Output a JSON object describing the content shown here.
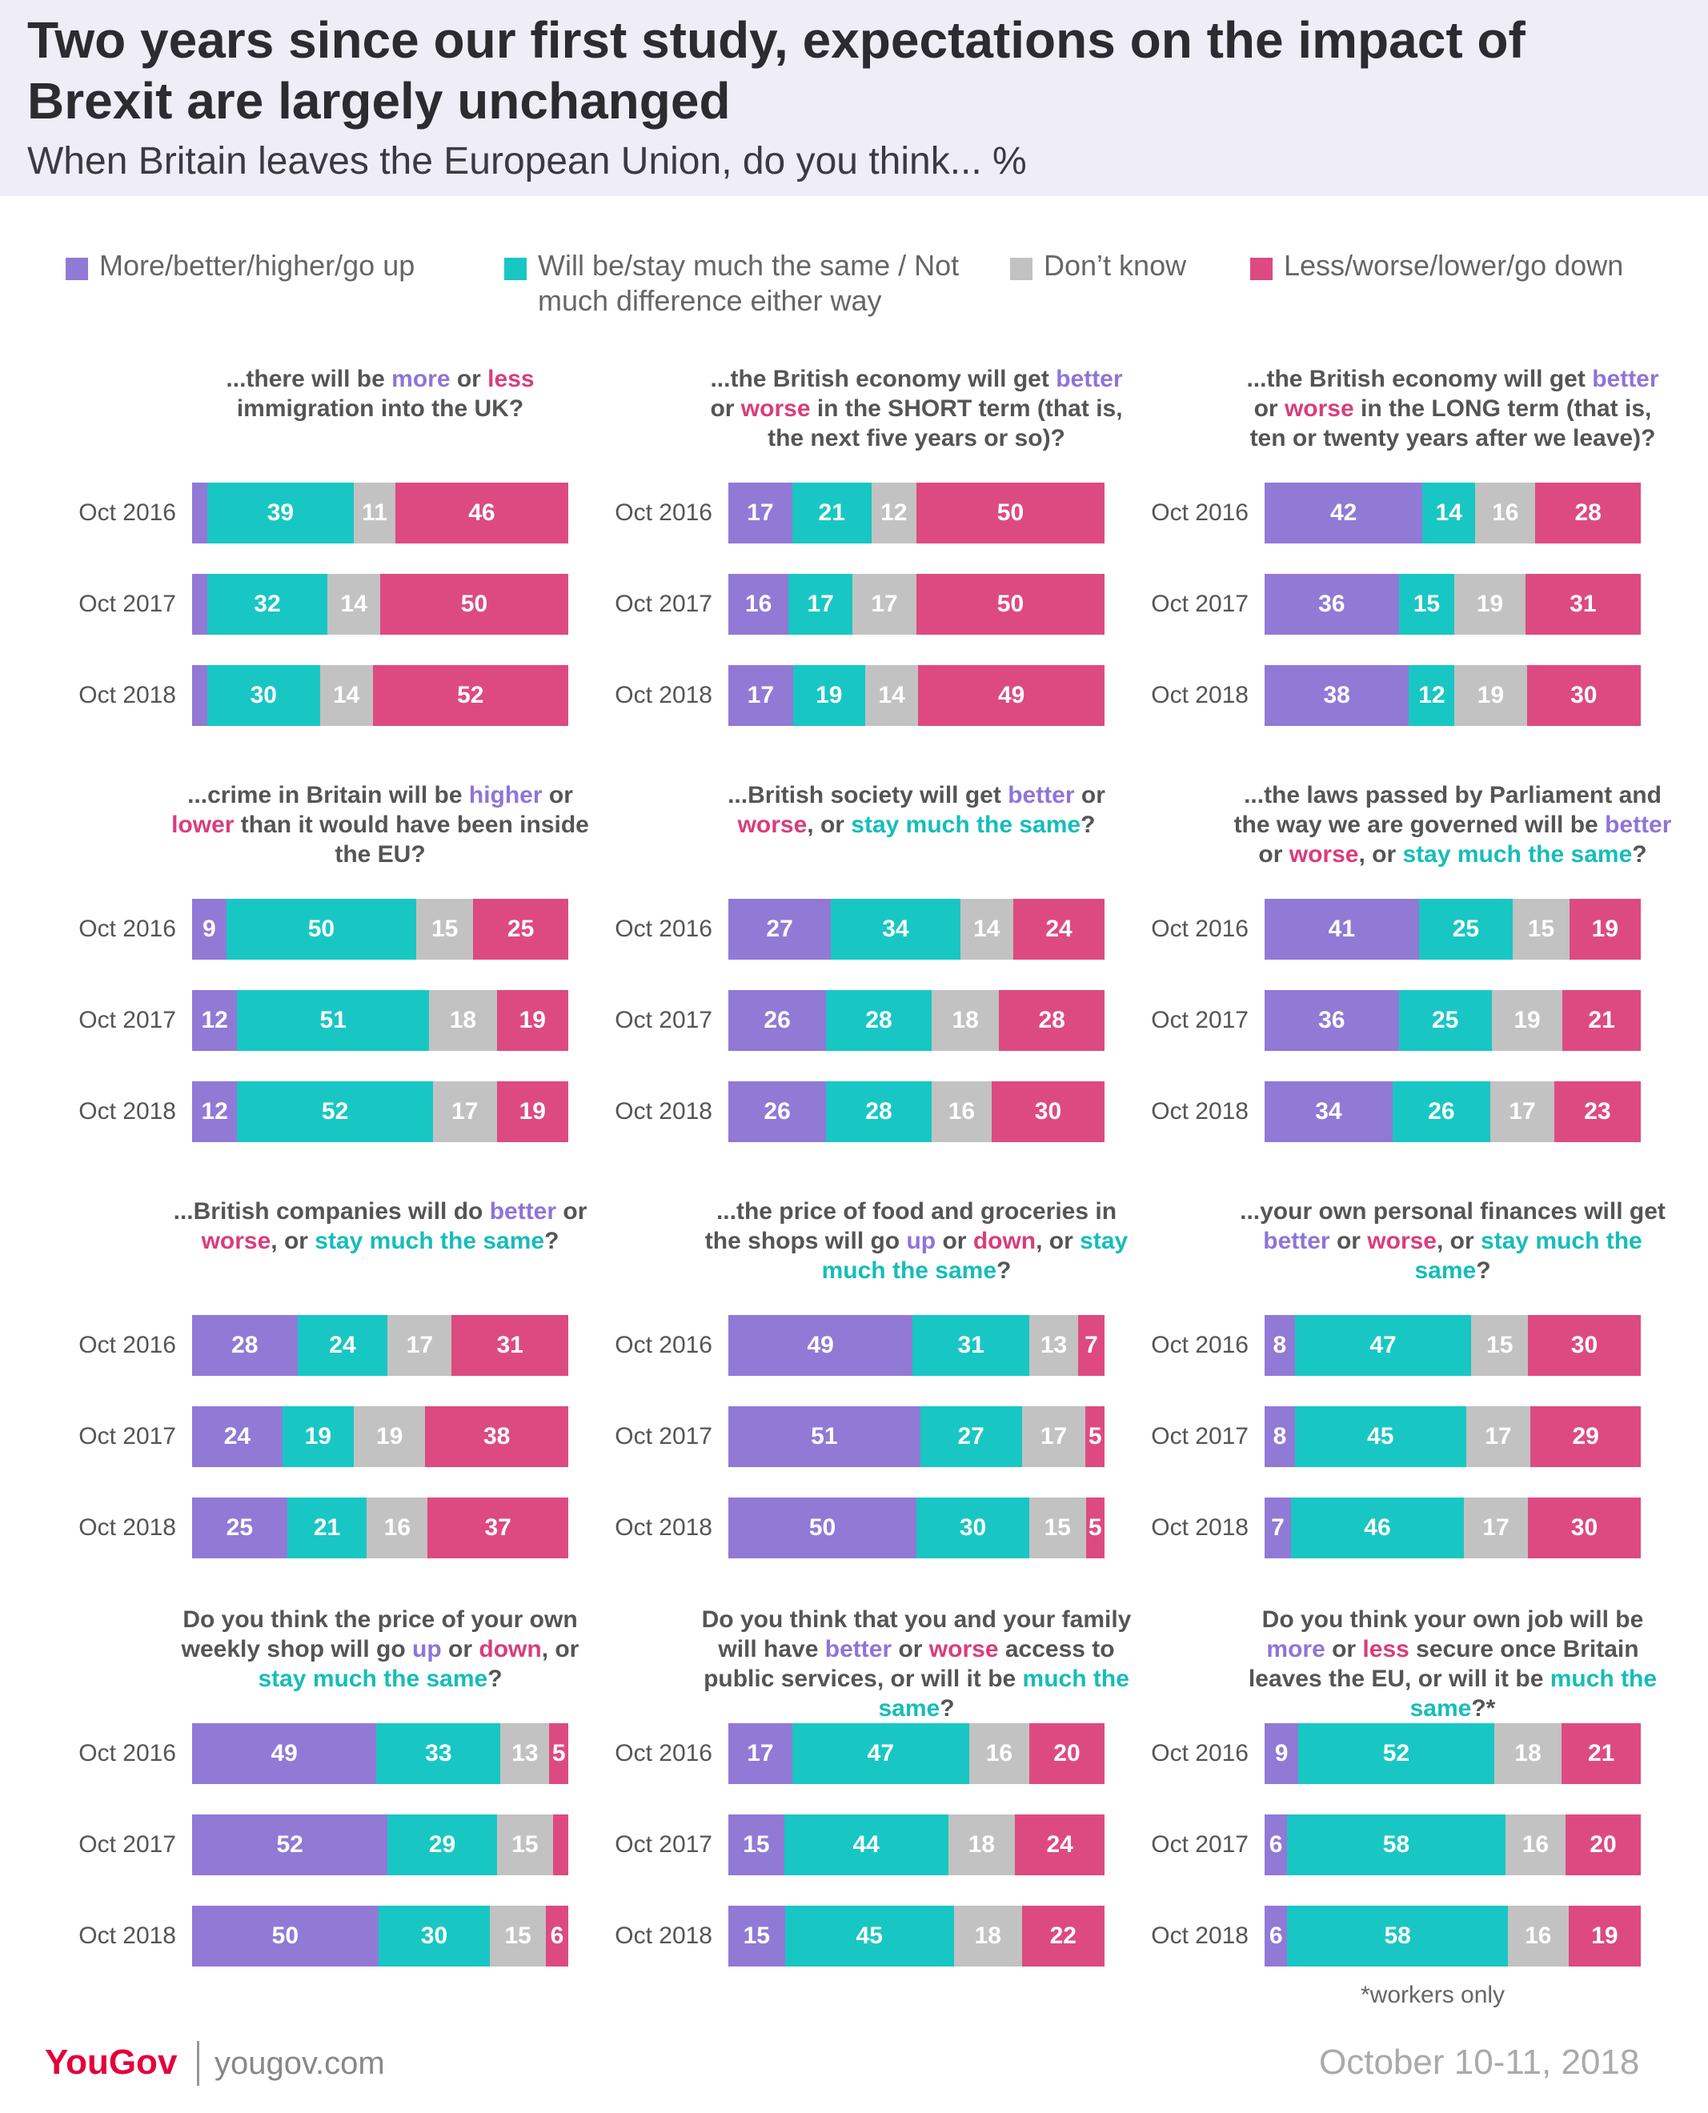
{
  "header": {
    "title": "Two years since our first study, expectations on the impact of Brexit are largely unchanged",
    "subtitle": "When Britain leaves the European Union, do you think... %"
  },
  "colors": {
    "more": "#9179d6",
    "same": "#18c7c3",
    "dont_know": "#c2c2c2",
    "less": "#dd4a82",
    "header_bg": "#efedf6"
  },
  "legend": [
    {
      "key": "more",
      "label": "More/better/higher/go up"
    },
    {
      "key": "same",
      "label": "Will be/stay much the same / Not much difference either way"
    },
    {
      "key": "dont_know",
      "label": "Don’t know"
    },
    {
      "key": "less",
      "label": "Less/worse/lower/go down"
    }
  ],
  "chart_data": {
    "type": "bar",
    "stacked": true,
    "orientation": "horizontal",
    "series_order": [
      "More/better/higher/go up",
      "Will be/stay much the same / Not much difference either way",
      "Don’t know",
      "Less/worse/lower/go down"
    ],
    "panels": [
      {
        "question": [
          [
            "...there will be ",
            ""
          ],
          [
            "more",
            "more"
          ],
          [
            " or ",
            ""
          ],
          [
            "less",
            "less"
          ],
          [
            " immigration into the UK?",
            ""
          ]
        ],
        "rows": [
          {
            "label": "Oct 2016",
            "values": [
              4,
              39,
              11,
              46
            ],
            "value_labels": [
              "",
              "39",
              "11",
              "46"
            ]
          },
          {
            "label": "Oct 2017",
            "values": [
              4,
              32,
              14,
              50
            ],
            "value_labels": [
              "",
              "32",
              "14",
              "50"
            ]
          },
          {
            "label": "Oct 2018",
            "values": [
              4,
              30,
              14,
              52
            ],
            "value_labels": [
              "",
              "30",
              "14",
              "52"
            ]
          }
        ]
      },
      {
        "question": [
          [
            "...the British economy will get ",
            ""
          ],
          [
            "better",
            "more"
          ],
          [
            " or ",
            ""
          ],
          [
            "worse",
            "less"
          ],
          [
            " in the SHORT term (that is, the next five years or so)?",
            ""
          ]
        ],
        "rows": [
          {
            "label": "Oct 2016",
            "values": [
              17,
              21,
              12,
              50
            ],
            "value_labels": [
              "17",
              "21",
              "12",
              "50"
            ]
          },
          {
            "label": "Oct 2017",
            "values": [
              16,
              17,
              17,
              50
            ],
            "value_labels": [
              "16",
              "17",
              "17",
              "50"
            ]
          },
          {
            "label": "Oct 2018",
            "values": [
              17,
              19,
              14,
              49
            ],
            "value_labels": [
              "17",
              "19",
              "14",
              "49"
            ]
          }
        ]
      },
      {
        "question": [
          [
            "...the British economy will get ",
            ""
          ],
          [
            "better",
            "more"
          ],
          [
            " or ",
            ""
          ],
          [
            "worse",
            "less"
          ],
          [
            " in the LONG term (that is, ten or twenty years after we leave)?",
            ""
          ]
        ],
        "rows": [
          {
            "label": "Oct 2016",
            "values": [
              42,
              14,
              16,
              28
            ],
            "value_labels": [
              "42",
              "14",
              "16",
              "28"
            ]
          },
          {
            "label": "Oct 2017",
            "values": [
              36,
              15,
              19,
              31
            ],
            "value_labels": [
              "36",
              "15",
              "19",
              "31"
            ]
          },
          {
            "label": "Oct 2018",
            "values": [
              38,
              12,
              19,
              30
            ],
            "value_labels": [
              "38",
              "12",
              "19",
              "30"
            ]
          }
        ]
      },
      {
        "question": [
          [
            "...crime in Britain will be ",
            ""
          ],
          [
            "higher",
            "more"
          ],
          [
            " or ",
            ""
          ],
          [
            "lower",
            "less"
          ],
          [
            " than it would have been inside the EU?",
            ""
          ]
        ],
        "rows": [
          {
            "label": "Oct 2016",
            "values": [
              9,
              50,
              15,
              25
            ],
            "value_labels": [
              "9",
              "50",
              "15",
              "25"
            ]
          },
          {
            "label": "Oct 2017",
            "values": [
              12,
              51,
              18,
              19
            ],
            "value_labels": [
              "12",
              "51",
              "18",
              "19"
            ]
          },
          {
            "label": "Oct 2018",
            "values": [
              12,
              52,
              17,
              19
            ],
            "value_labels": [
              "12",
              "52",
              "17",
              "19"
            ]
          }
        ]
      },
      {
        "question": [
          [
            "...British society will get ",
            ""
          ],
          [
            "better",
            "more"
          ],
          [
            " or ",
            ""
          ],
          [
            "worse",
            "less"
          ],
          [
            ", or ",
            ""
          ],
          [
            "stay much the same",
            "same"
          ],
          [
            "?",
            ""
          ]
        ],
        "rows": [
          {
            "label": "Oct 2016",
            "values": [
              27,
              34,
              14,
              24
            ],
            "value_labels": [
              "27",
              "34",
              "14",
              "24"
            ]
          },
          {
            "label": "Oct 2017",
            "values": [
              26,
              28,
              18,
              28
            ],
            "value_labels": [
              "26",
              "28",
              "18",
              "28"
            ]
          },
          {
            "label": "Oct 2018",
            "values": [
              26,
              28,
              16,
              30
            ],
            "value_labels": [
              "26",
              "28",
              "16",
              "30"
            ]
          }
        ]
      },
      {
        "question": [
          [
            "...the laws passed by Parliament and the way we are governed will be ",
            ""
          ],
          [
            "better",
            "more"
          ],
          [
            " or ",
            ""
          ],
          [
            "worse",
            "less"
          ],
          [
            ", or ",
            ""
          ],
          [
            "stay much the same",
            "same"
          ],
          [
            "?",
            ""
          ]
        ],
        "rows": [
          {
            "label": "Oct 2016",
            "values": [
              41,
              25,
              15,
              19
            ],
            "value_labels": [
              "41",
              "25",
              "15",
              "19"
            ]
          },
          {
            "label": "Oct 2017",
            "values": [
              36,
              25,
              19,
              21
            ],
            "value_labels": [
              "36",
              "25",
              "19",
              "21"
            ]
          },
          {
            "label": "Oct 2018",
            "values": [
              34,
              26,
              17,
              23
            ],
            "value_labels": [
              "34",
              "26",
              "17",
              "23"
            ]
          }
        ]
      },
      {
        "question": [
          [
            "...British companies will do ",
            ""
          ],
          [
            "better",
            "more"
          ],
          [
            " or ",
            ""
          ],
          [
            "worse",
            "less"
          ],
          [
            ", or ",
            ""
          ],
          [
            "stay much the same",
            "same"
          ],
          [
            "?",
            ""
          ]
        ],
        "rows": [
          {
            "label": "Oct 2016",
            "values": [
              28,
              24,
              17,
              31
            ],
            "value_labels": [
              "28",
              "24",
              "17",
              "31"
            ]
          },
          {
            "label": "Oct 2017",
            "values": [
              24,
              19,
              19,
              38
            ],
            "value_labels": [
              "24",
              "19",
              "19",
              "38"
            ]
          },
          {
            "label": "Oct 2018",
            "values": [
              25,
              21,
              16,
              37
            ],
            "value_labels": [
              "25",
              "21",
              "16",
              "37"
            ]
          }
        ]
      },
      {
        "question": [
          [
            "...the price of food and groceries in the shops will go ",
            ""
          ],
          [
            "up",
            "more"
          ],
          [
            " or ",
            ""
          ],
          [
            "down",
            "less"
          ],
          [
            ", or ",
            ""
          ],
          [
            "stay much the same",
            "same"
          ],
          [
            "?",
            ""
          ]
        ],
        "rows": [
          {
            "label": "Oct 2016",
            "values": [
              49,
              31,
              13,
              7
            ],
            "value_labels": [
              "49",
              "31",
              "13",
              "7"
            ]
          },
          {
            "label": "Oct 2017",
            "values": [
              51,
              27,
              17,
              5
            ],
            "value_labels": [
              "51",
              "27",
              "17",
              "5"
            ]
          },
          {
            "label": "Oct 2018",
            "values": [
              50,
              30,
              15,
              5
            ],
            "value_labels": [
              "50",
              "30",
              "15",
              "5"
            ]
          }
        ]
      },
      {
        "question": [
          [
            "...your own personal finances will get ",
            ""
          ],
          [
            "better",
            "more"
          ],
          [
            " or ",
            ""
          ],
          [
            "worse",
            "less"
          ],
          [
            ", or ",
            ""
          ],
          [
            "stay much the same",
            "same"
          ],
          [
            "?",
            ""
          ]
        ],
        "rows": [
          {
            "label": "Oct 2016",
            "values": [
              8,
              47,
              15,
              30
            ],
            "value_labels": [
              "8",
              "47",
              "15",
              "30"
            ]
          },
          {
            "label": "Oct 2017",
            "values": [
              8,
              45,
              17,
              29
            ],
            "value_labels": [
              "8",
              "45",
              "17",
              "29"
            ]
          },
          {
            "label": "Oct 2018",
            "values": [
              7,
              46,
              17,
              30
            ],
            "value_labels": [
              "7",
              "46",
              "17",
              "30"
            ]
          }
        ]
      },
      {
        "question": [
          [
            "Do you think the price of your own weekly shop will go ",
            ""
          ],
          [
            "up",
            "more"
          ],
          [
            " or ",
            ""
          ],
          [
            "down",
            "less"
          ],
          [
            ", or ",
            ""
          ],
          [
            "stay much the same",
            "same"
          ],
          [
            "?",
            ""
          ]
        ],
        "rows": [
          {
            "label": "Oct 2016",
            "values": [
              49,
              33,
              13,
              5
            ],
            "value_labels": [
              "49",
              "33",
              "13",
              "5"
            ]
          },
          {
            "label": "Oct 2017",
            "values": [
              52,
              29,
              15,
              4
            ],
            "value_labels": [
              "52",
              "29",
              "15",
              ""
            ]
          },
          {
            "label": "Oct 2018",
            "values": [
              50,
              30,
              15,
              6
            ],
            "value_labels": [
              "50",
              "30",
              "15",
              "6"
            ]
          }
        ]
      },
      {
        "question": [
          [
            "Do you think that you and your family will have ",
            ""
          ],
          [
            "better",
            "more"
          ],
          [
            " or ",
            ""
          ],
          [
            "worse",
            "less"
          ],
          [
            " access to public services, or will it be ",
            ""
          ],
          [
            "much the same",
            "same"
          ],
          [
            "?",
            ""
          ]
        ],
        "rows": [
          {
            "label": "Oct 2016",
            "values": [
              17,
              47,
              16,
              20
            ],
            "value_labels": [
              "17",
              "47",
              "16",
              "20"
            ]
          },
          {
            "label": "Oct 2017",
            "values": [
              15,
              44,
              18,
              24
            ],
            "value_labels": [
              "15",
              "44",
              "18",
              "24"
            ]
          },
          {
            "label": "Oct 2018",
            "values": [
              15,
              45,
              18,
              22
            ],
            "value_labels": [
              "15",
              "45",
              "18",
              "22"
            ]
          }
        ]
      },
      {
        "question": [
          [
            "Do you think your own job will be ",
            ""
          ],
          [
            "more",
            "more"
          ],
          [
            " or ",
            ""
          ],
          [
            "less",
            "less"
          ],
          [
            " secure once Britain leaves the EU, or will it be ",
            ""
          ],
          [
            "much the same",
            "same"
          ],
          [
            "?*",
            ""
          ]
        ],
        "rows": [
          {
            "label": "Oct 2016",
            "values": [
              9,
              52,
              18,
              21
            ],
            "value_labels": [
              "9",
              "52",
              "18",
              "21"
            ]
          },
          {
            "label": "Oct 2017",
            "values": [
              6,
              58,
              16,
              20
            ],
            "value_labels": [
              "6",
              "58",
              "16",
              "20"
            ]
          },
          {
            "label": "Oct 2018",
            "values": [
              6,
              58,
              16,
              19
            ],
            "value_labels": [
              "6",
              "58",
              "16",
              "19"
            ]
          }
        ]
      }
    ]
  },
  "footnote": "*workers only",
  "footer": {
    "brand": "YouGov",
    "url": "yougov.com",
    "date": "October 10-11, 2018"
  }
}
